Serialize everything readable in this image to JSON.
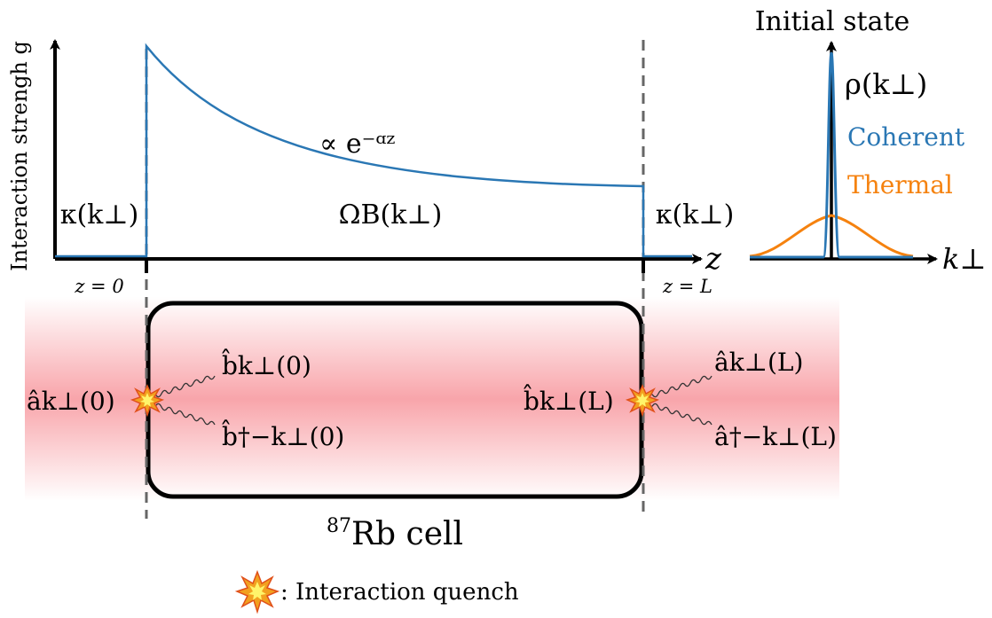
{
  "y_axis": {
    "label": "Interaction strengh g"
  },
  "x_axis": {
    "label": "z"
  },
  "curve": {
    "color": "#2a77b4",
    "annotation": "∝ e⁻ᵅᶻ"
  },
  "regions": {
    "left": "κ(k⊥)",
    "middle": "ΩB(k⊥)",
    "right": "κ(k⊥)"
  },
  "boundaries": {
    "left": "z = 0",
    "right": "z = L"
  },
  "cell": {
    "label_sup": "87",
    "label": "Rb cell"
  },
  "modes": {
    "a_in": "âk⊥(0)",
    "b_out_top": "b̂k⊥(0)",
    "b_out_bottom": "b̂†−k⊥(0)",
    "b_in": "b̂k⊥(L)",
    "a_out_top": "âk⊥(L)",
    "a_out_bottom": "â†−k⊥(L)"
  },
  "inset": {
    "title": "Initial state",
    "y_label": "ρ(k⊥)",
    "x_label": "k⊥",
    "series": [
      {
        "name": "Coherent",
        "color": "#2a77b4"
      },
      {
        "name": "Thermal",
        "color": "#f5820f"
      }
    ]
  },
  "legend": {
    "icon": "explosion-icon",
    "label": ": Interaction quench"
  },
  "colors": {
    "beam": "#f59aa0",
    "dashed": "#666666"
  }
}
